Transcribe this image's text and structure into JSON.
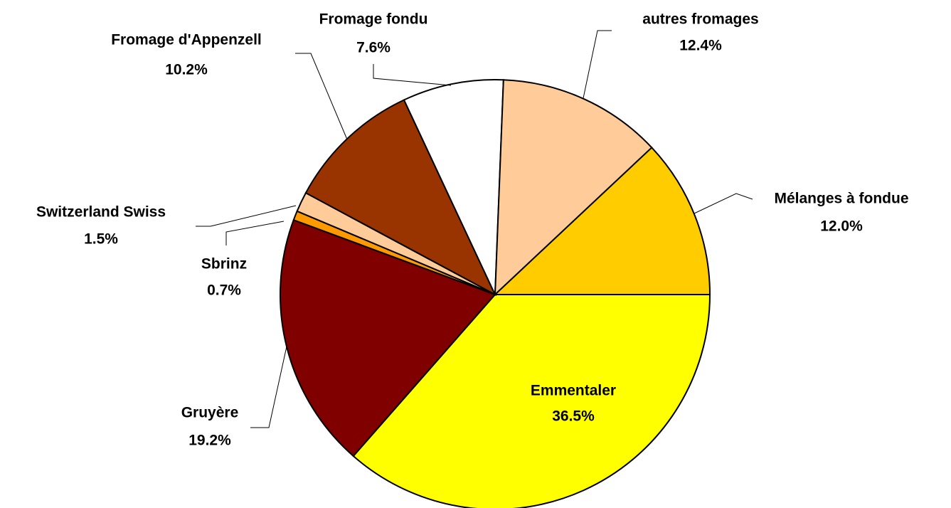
{
  "chart_data": {
    "type": "pie",
    "categories": [
      "Emmentaler",
      "Gruyère",
      "Sbrinz",
      "Switzerland Swiss",
      "Fromage d'Appenzell",
      "Fromage fondu",
      "autres fromages",
      "Mélanges à fondue"
    ],
    "values": [
      36.5,
      19.2,
      0.7,
      1.5,
      10.2,
      7.6,
      12.4,
      12.0
    ],
    "value_labels": [
      "36.5%",
      "19.2%",
      "0.7%",
      "1.5%",
      "10.2%",
      "7.6%",
      "12.4%",
      "12.0%"
    ],
    "colors": [
      "#ffff00",
      "#800000",
      "#ff9900",
      "#ffcc99",
      "#993300",
      "#ffffff",
      "#ffcc99",
      "#ffcc00"
    ]
  }
}
